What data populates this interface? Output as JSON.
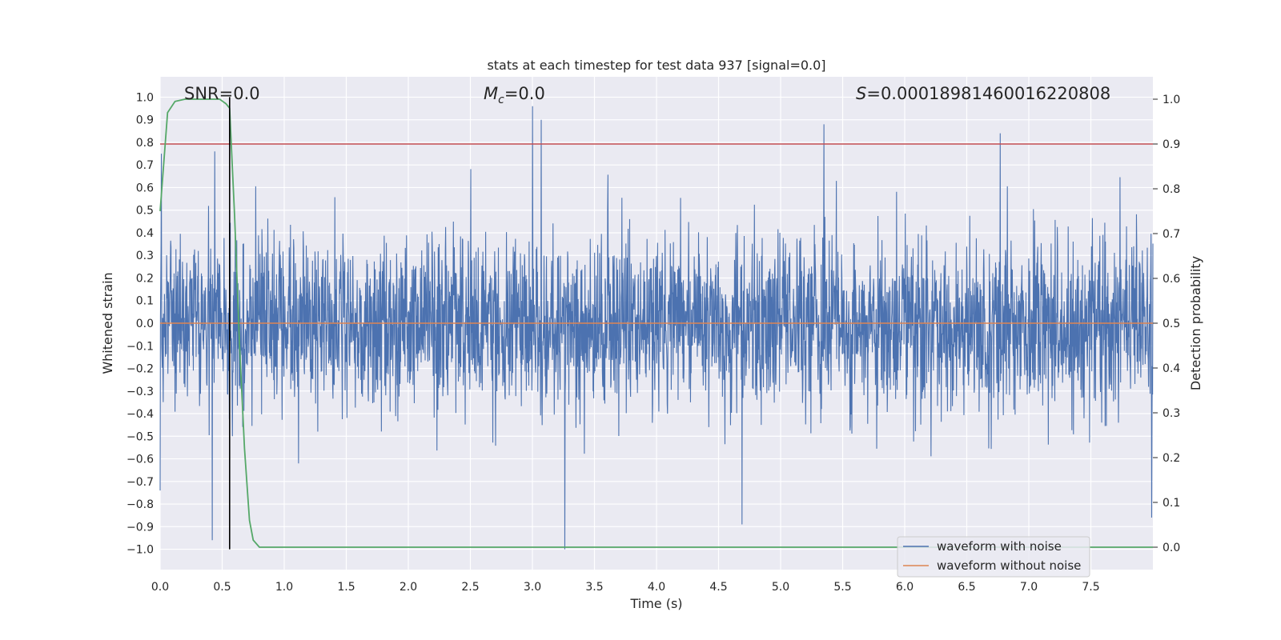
{
  "chart_data": {
    "type": "line",
    "title": "stats at each timestep for test data 937 [signal=0.0]",
    "xlabel": "Time (s)",
    "ylabel": "Whitened strain",
    "y2label": "Detection probability",
    "xlim": [
      0.0,
      8.0
    ],
    "ylim": [
      -1.09,
      1.09
    ],
    "y2lim": [
      -0.05,
      1.05
    ],
    "grid": true,
    "legend_position": "lower-right",
    "xticks": [
      "0.0",
      "0.5",
      "1.0",
      "1.5",
      "2.0",
      "2.5",
      "3.0",
      "3.5",
      "4.0",
      "4.5",
      "5.0",
      "5.5",
      "6.0",
      "6.5",
      "7.0",
      "7.5"
    ],
    "yticks": [
      "1.0",
      "0.9",
      "0.8",
      "0.7",
      "0.6",
      "0.5",
      "0.4",
      "0.3",
      "0.2",
      "0.1",
      "0.0",
      "−0.1",
      "−0.2",
      "−0.3",
      "−0.4",
      "−0.5",
      "−0.6",
      "−0.7",
      "−0.8",
      "−0.9",
      "−1.0"
    ],
    "y2ticks": [
      "1.0",
      "0.9",
      "0.8",
      "0.7",
      "0.6",
      "0.5",
      "0.4",
      "0.3",
      "0.2",
      "0.1",
      "0.0"
    ],
    "annotations": {
      "snr": "SNR=0.0",
      "mc_symbol": "M",
      "mc_sub": "c",
      "mc_value": "=0.0",
      "s_symbol": "S",
      "s_value": "=0.00018981460016220808"
    },
    "threshold_line": {
      "axis": "y2",
      "value": 0.9,
      "color": "#c44e52"
    },
    "marker_line": {
      "x": 0.56,
      "y_from": -1.0,
      "y_to": 1.0,
      "color": "#000000"
    },
    "series": [
      {
        "name": "waveform with noise",
        "axis": "y",
        "color": "#4c72b0",
        "description": "dense white-noise strain trace sampled across 0–8 s",
        "amplitude_range": [
          -1.0,
          0.96
        ],
        "notable_peaks": [
          {
            "x": 0.0,
            "y": -0.74
          },
          {
            "x": 0.01,
            "y": 0.75
          },
          {
            "x": 0.42,
            "y": -0.96
          },
          {
            "x": 0.44,
            "y": 0.76
          },
          {
            "x": 3.0,
            "y": 0.96
          },
          {
            "x": 3.07,
            "y": 0.9
          },
          {
            "x": 3.26,
            "y": -1.0
          },
          {
            "x": 4.69,
            "y": -0.89
          },
          {
            "x": 5.35,
            "y": 0.88
          },
          {
            "x": 6.77,
            "y": 0.84
          },
          {
            "x": 7.99,
            "y": -0.86
          }
        ]
      },
      {
        "name": "waveform without noise",
        "axis": "y",
        "color": "#dd8452",
        "x": [
          0.0,
          8.0
        ],
        "y": [
          0.0,
          0.0
        ]
      },
      {
        "name": "detection probability",
        "axis": "y2",
        "color": "#55a868",
        "x": [
          0.0,
          0.03,
          0.06,
          0.12,
          0.2,
          0.3,
          0.4,
          0.48,
          0.53,
          0.56,
          0.6,
          0.64,
          0.68,
          0.72,
          0.75,
          0.8,
          1.0,
          2.0,
          3.0,
          4.0,
          5.0,
          6.0,
          7.0,
          8.0
        ],
        "y": [
          0.75,
          0.86,
          0.97,
          0.995,
          1.0,
          1.0,
          1.0,
          1.0,
          0.99,
          0.98,
          0.74,
          0.45,
          0.22,
          0.06,
          0.016,
          0.0,
          0.0,
          0.0,
          0.0,
          0.0,
          0.0,
          0.0,
          0.0,
          0.0
        ]
      }
    ]
  },
  "legend": {
    "items": [
      {
        "label": "waveform with noise",
        "color": "#4c72b0"
      },
      {
        "label": "waveform without noise",
        "color": "#dd8452"
      }
    ]
  }
}
